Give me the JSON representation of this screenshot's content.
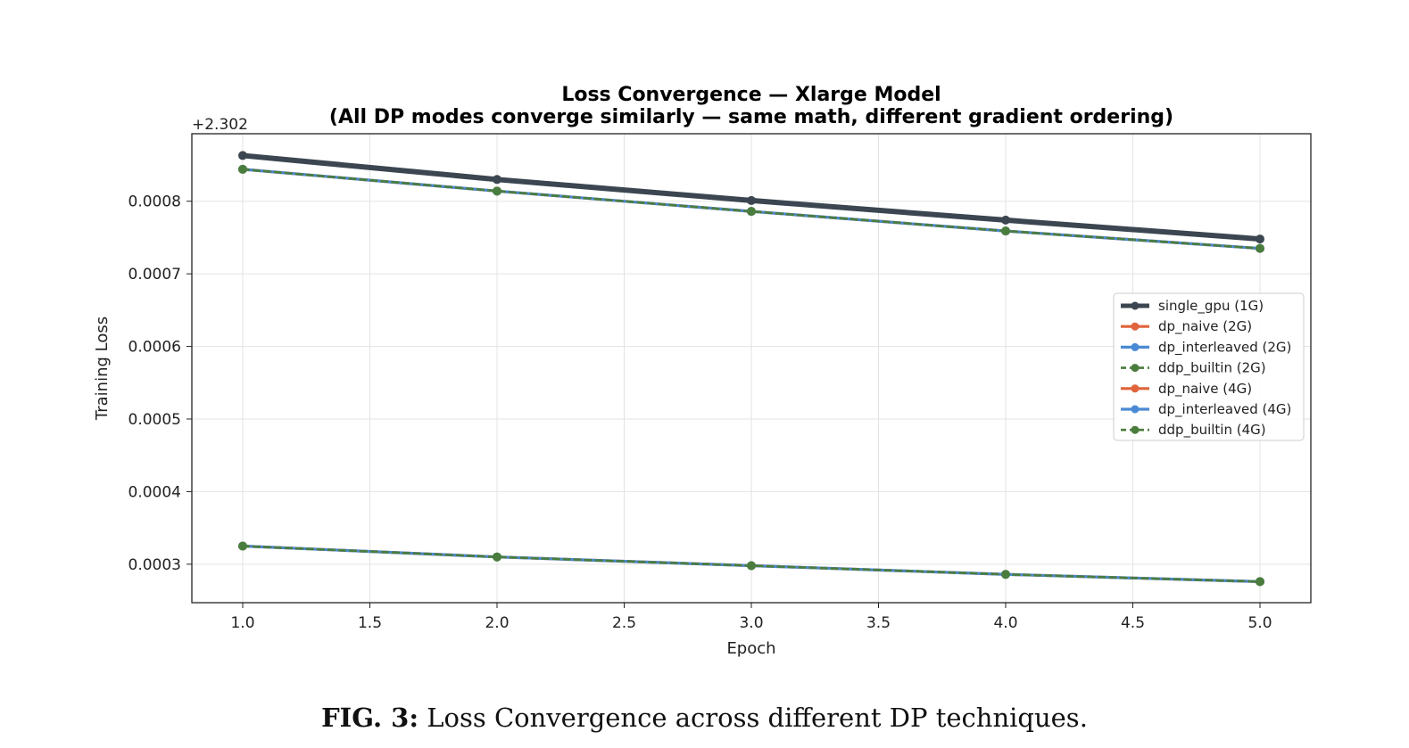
{
  "chart_data": {
    "type": "line",
    "title_line1": "Loss Convergence — Xlarge Model",
    "title_line2": "(All DP modes converge similarly — same math, different gradient ordering)",
    "xlabel": "Epoch",
    "ylabel": "Training Loss",
    "y_offset_label": "+2.302",
    "y_offset": 2.302,
    "xlim": [
      0.8,
      5.2
    ],
    "ylim": [
      0.000247,
      0.000893
    ],
    "x_ticks": [
      "1.0",
      "1.5",
      "2.0",
      "2.5",
      "3.0",
      "3.5",
      "4.0",
      "4.5",
      "5.0"
    ],
    "y_ticks": [
      "0.0003",
      "0.0004",
      "0.0005",
      "0.0006",
      "0.0007",
      "0.0008"
    ],
    "grid": true,
    "legend_position": "center-right",
    "x": [
      1,
      2,
      3,
      4,
      5
    ],
    "series": [
      {
        "name": "single_gpu (1G)",
        "color": "#3b4650",
        "style": "solid-thick",
        "values": [
          0.000863,
          0.00083,
          0.000801,
          0.000774,
          0.000748
        ]
      },
      {
        "name": "dp_naive (2G)",
        "color": "#e0643c",
        "style": "solid",
        "values": [
          0.000844,
          0.000814,
          0.000786,
          0.000759,
          0.000735
        ]
      },
      {
        "name": "dp_interleaved (2G)",
        "color": "#4a8ad4",
        "style": "solid",
        "values": [
          0.000844,
          0.000814,
          0.000786,
          0.000759,
          0.000735
        ]
      },
      {
        "name": "ddp_builtin (2G)",
        "color": "#4a7d3d",
        "style": "dashed",
        "values": [
          0.000844,
          0.000814,
          0.000786,
          0.000759,
          0.000735
        ]
      },
      {
        "name": "dp_naive (4G)",
        "color": "#e0643c",
        "style": "solid",
        "values": [
          0.000325,
          0.00031,
          0.000298,
          0.000286,
          0.000276
        ]
      },
      {
        "name": "dp_interleaved (4G)",
        "color": "#4a8ad4",
        "style": "solid",
        "values": [
          0.000325,
          0.00031,
          0.000298,
          0.000286,
          0.000276
        ]
      },
      {
        "name": "ddp_builtin (4G)",
        "color": "#4a7d3d",
        "style": "dashed",
        "values": [
          0.000325,
          0.00031,
          0.000298,
          0.000286,
          0.000276
        ]
      }
    ]
  },
  "caption": {
    "label": "FIG. 3:",
    "text": "Loss Convergence across different DP techniques."
  }
}
